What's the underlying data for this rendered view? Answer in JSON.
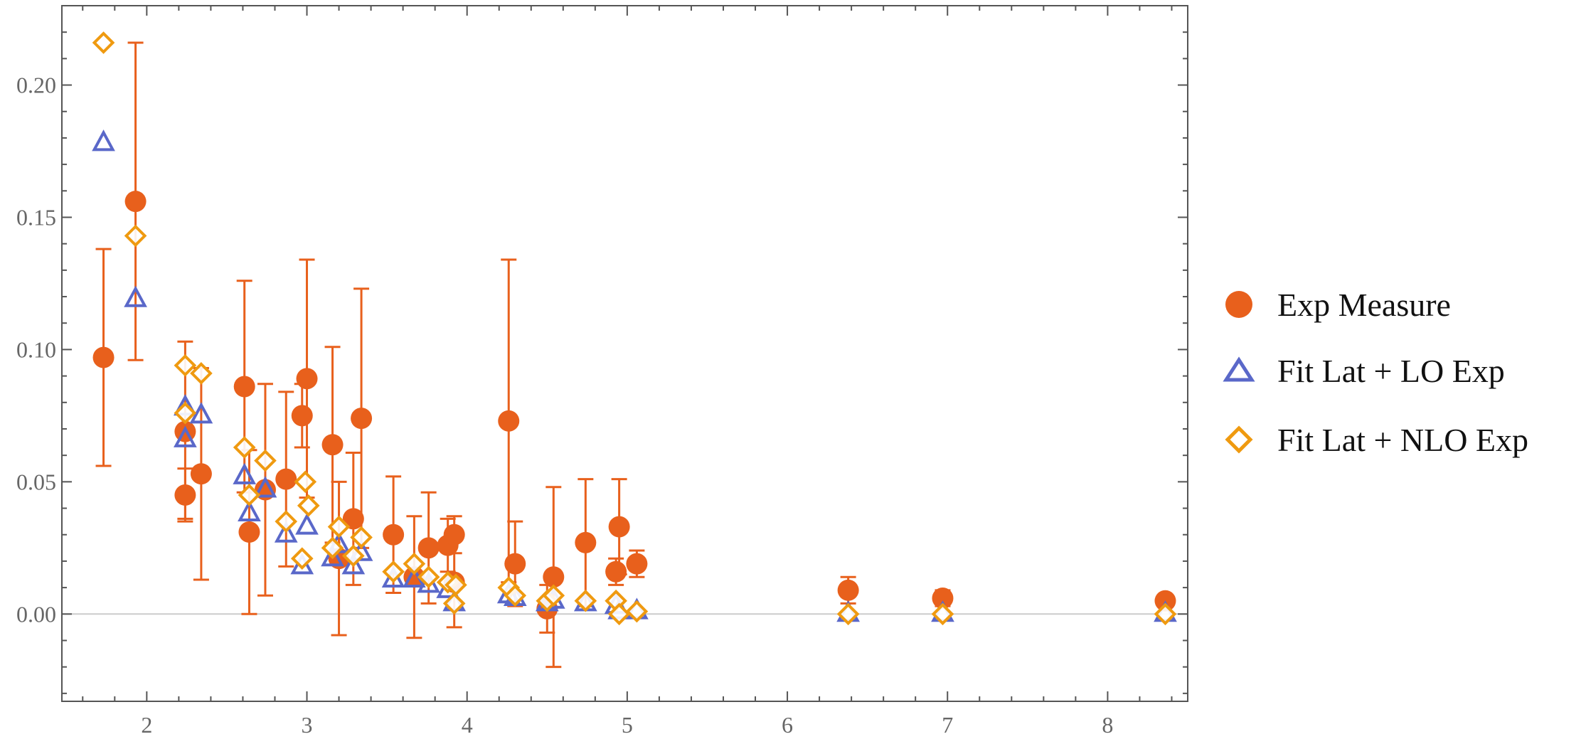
{
  "chart_data": {
    "type": "scatter",
    "title": "",
    "xlabel": "",
    "ylabel": "",
    "xlim": [
      1.47,
      8.5
    ],
    "ylim": [
      -0.033,
      0.23
    ],
    "grid": false,
    "xticks": [
      2,
      3,
      4,
      5,
      6,
      7,
      8
    ],
    "xtick_labels": [
      "2",
      "3",
      "4",
      "5",
      "6",
      "7",
      "8"
    ],
    "yticks": [
      0.0,
      0.05,
      0.1,
      0.15,
      0.2
    ],
    "ytick_labels": [
      "0.00",
      "0.05",
      "0.10",
      "0.15",
      "0.20"
    ],
    "legend_position": "right",
    "colors": {
      "exp": "#e8601c",
      "lo": "#5a68c9",
      "nlo": "#ef9a10",
      "axis": "#555555",
      "zero": "#cccccc"
    },
    "series": [
      {
        "name": "Exp Measure",
        "marker": "filled-circle",
        "points": [
          {
            "x": 1.73,
            "y": 0.097,
            "lo": 0.056,
            "hi": 0.138
          },
          {
            "x": 1.93,
            "y": 0.156,
            "lo": 0.096,
            "hi": 0.216
          },
          {
            "x": 2.24,
            "y": 0.069,
            "lo": 0.036,
            "hi": 0.103
          },
          {
            "x": 2.24,
            "y": 0.045,
            "lo": 0.035,
            "hi": 0.055
          },
          {
            "x": 2.34,
            "y": 0.053,
            "lo": 0.013,
            "hi": 0.093
          },
          {
            "x": 2.61,
            "y": 0.086,
            "lo": 0.046,
            "hi": 0.126
          },
          {
            "x": 2.64,
            "y": 0.031,
            "lo": 0.0,
            "hi": 0.062
          },
          {
            "x": 2.74,
            "y": 0.047,
            "lo": 0.007,
            "hi": 0.087
          },
          {
            "x": 2.87,
            "y": 0.051,
            "lo": 0.018,
            "hi": 0.084
          },
          {
            "x": 2.97,
            "y": 0.075,
            "lo": 0.063,
            "hi": 0.087
          },
          {
            "x": 3.0,
            "y": 0.089,
            "lo": 0.044,
            "hi": 0.134
          },
          {
            "x": 3.16,
            "y": 0.064,
            "lo": 0.027,
            "hi": 0.101
          },
          {
            "x": 3.2,
            "y": 0.021,
            "lo": -0.008,
            "hi": 0.05
          },
          {
            "x": 3.29,
            "y": 0.036,
            "lo": 0.011,
            "hi": 0.061
          },
          {
            "x": 3.34,
            "y": 0.074,
            "lo": 0.025,
            "hi": 0.123
          },
          {
            "x": 3.54,
            "y": 0.03,
            "lo": 0.008,
            "hi": 0.052
          },
          {
            "x": 3.67,
            "y": 0.014,
            "lo": -0.009,
            "hi": 0.037
          },
          {
            "x": 3.76,
            "y": 0.025,
            "lo": 0.004,
            "hi": 0.046
          },
          {
            "x": 3.88,
            "y": 0.026,
            "lo": 0.016,
            "hi": 0.036
          },
          {
            "x": 3.92,
            "y": 0.03,
            "lo": 0.023,
            "hi": 0.037
          },
          {
            "x": 3.92,
            "y": 0.012,
            "lo": -0.005,
            "hi": 0.029
          },
          {
            "x": 4.26,
            "y": 0.073,
            "lo": 0.012,
            "hi": 0.134
          },
          {
            "x": 4.3,
            "y": 0.019,
            "lo": 0.003,
            "hi": 0.035
          },
          {
            "x": 4.5,
            "y": 0.002,
            "lo": -0.007,
            "hi": 0.011
          },
          {
            "x": 4.54,
            "y": 0.014,
            "lo": -0.02,
            "hi": 0.048
          },
          {
            "x": 4.74,
            "y": 0.027,
            "lo": 0.003,
            "hi": 0.051
          },
          {
            "x": 4.93,
            "y": 0.016,
            "lo": 0.011,
            "hi": 0.021
          },
          {
            "x": 4.95,
            "y": 0.033,
            "lo": 0.015,
            "hi": 0.051
          },
          {
            "x": 5.06,
            "y": 0.019,
            "lo": 0.014,
            "hi": 0.024
          },
          {
            "x": 6.38,
            "y": 0.009,
            "lo": 0.004,
            "hi": 0.014
          },
          {
            "x": 6.97,
            "y": 0.006,
            "lo": 0.003,
            "hi": 0.009
          },
          {
            "x": 8.36,
            "y": 0.005,
            "lo": 0.003,
            "hi": 0.007
          }
        ]
      },
      {
        "name": "Fit Lat + LO Exp",
        "marker": "open-triangle",
        "points": [
          {
            "x": 1.73,
            "y": 0.178
          },
          {
            "x": 1.93,
            "y": 0.119
          },
          {
            "x": 2.24,
            "y": 0.078
          },
          {
            "x": 2.24,
            "y": 0.066
          },
          {
            "x": 2.34,
            "y": 0.075
          },
          {
            "x": 2.61,
            "y": 0.052
          },
          {
            "x": 2.64,
            "y": 0.038
          },
          {
            "x": 2.74,
            "y": 0.047
          },
          {
            "x": 2.87,
            "y": 0.03
          },
          {
            "x": 2.97,
            "y": 0.018
          },
          {
            "x": 3.0,
            "y": 0.033
          },
          {
            "x": 3.16,
            "y": 0.021
          },
          {
            "x": 3.2,
            "y": 0.026
          },
          {
            "x": 3.29,
            "y": 0.018
          },
          {
            "x": 3.34,
            "y": 0.023
          },
          {
            "x": 3.54,
            "y": 0.013
          },
          {
            "x": 3.67,
            "y": 0.013
          },
          {
            "x": 3.76,
            "y": 0.011
          },
          {
            "x": 3.88,
            "y": 0.009
          },
          {
            "x": 3.92,
            "y": 0.004
          },
          {
            "x": 4.26,
            "y": 0.007
          },
          {
            "x": 4.3,
            "y": 0.006
          },
          {
            "x": 4.5,
            "y": 0.004
          },
          {
            "x": 4.54,
            "y": 0.005
          },
          {
            "x": 4.74,
            "y": 0.004
          },
          {
            "x": 4.93,
            "y": 0.003
          },
          {
            "x": 4.95,
            "y": 0.001
          },
          {
            "x": 5.06,
            "y": 0.001
          },
          {
            "x": 6.38,
            "y": 0.0
          },
          {
            "x": 6.97,
            "y": 0.0
          },
          {
            "x": 8.36,
            "y": 0.0
          }
        ]
      },
      {
        "name": "Fit Lat + NLO Exp",
        "marker": "open-diamond",
        "points": [
          {
            "x": 1.73,
            "y": 0.216
          },
          {
            "x": 1.93,
            "y": 0.143
          },
          {
            "x": 2.24,
            "y": 0.094
          },
          {
            "x": 2.24,
            "y": 0.076
          },
          {
            "x": 2.34,
            "y": 0.091
          },
          {
            "x": 2.61,
            "y": 0.063
          },
          {
            "x": 2.64,
            "y": 0.045
          },
          {
            "x": 2.74,
            "y": 0.058
          },
          {
            "x": 2.87,
            "y": 0.035
          },
          {
            "x": 2.97,
            "y": 0.021
          },
          {
            "x": 2.99,
            "y": 0.05
          },
          {
            "x": 3.01,
            "y": 0.041
          },
          {
            "x": 3.16,
            "y": 0.025
          },
          {
            "x": 3.2,
            "y": 0.033
          },
          {
            "x": 3.29,
            "y": 0.022
          },
          {
            "x": 3.34,
            "y": 0.029
          },
          {
            "x": 3.54,
            "y": 0.016
          },
          {
            "x": 3.67,
            "y": 0.019
          },
          {
            "x": 3.76,
            "y": 0.014
          },
          {
            "x": 3.88,
            "y": 0.012
          },
          {
            "x": 3.92,
            "y": 0.004
          },
          {
            "x": 3.93,
            "y": 0.011
          },
          {
            "x": 4.26,
            "y": 0.01
          },
          {
            "x": 4.3,
            "y": 0.007
          },
          {
            "x": 4.5,
            "y": 0.005
          },
          {
            "x": 4.54,
            "y": 0.007
          },
          {
            "x": 4.74,
            "y": 0.005
          },
          {
            "x": 4.93,
            "y": 0.005
          },
          {
            "x": 4.95,
            "y": 0.0
          },
          {
            "x": 5.06,
            "y": 0.001
          },
          {
            "x": 6.38,
            "y": 0.0
          },
          {
            "x": 6.97,
            "y": 0.0
          },
          {
            "x": 8.36,
            "y": 0.0
          }
        ]
      }
    ]
  }
}
